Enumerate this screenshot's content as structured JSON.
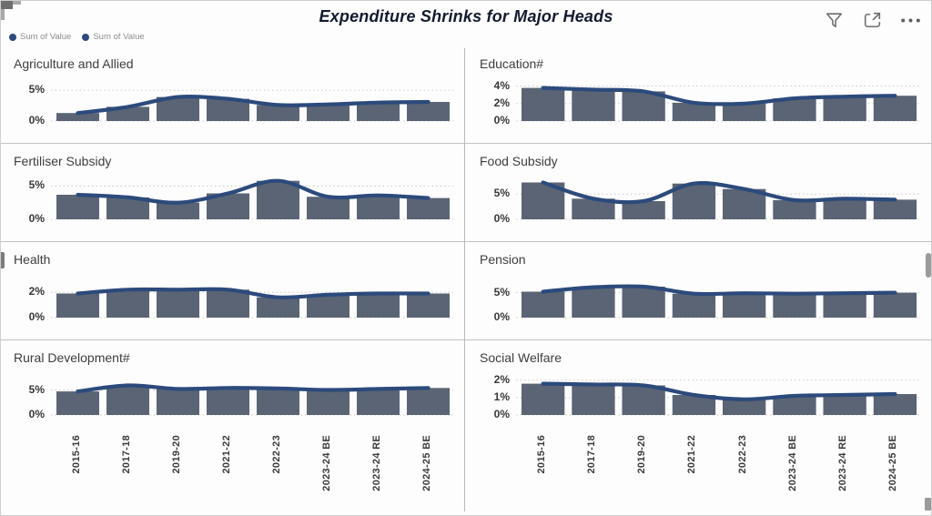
{
  "header": {
    "title": "Expenditure Shrinks for Major Heads",
    "icons": {
      "filter": "filter-icon",
      "focus": "focus-mode-icon",
      "more": "more-options-icon"
    }
  },
  "legend": {
    "items": [
      "Sum of Value",
      "Sum of Value"
    ]
  },
  "colors": {
    "bar": "#5a6474",
    "line": "#2c4a7c",
    "legend_dot": "#2c4a7c",
    "grid": "#c9c9c9",
    "title_text": "#121a2e"
  },
  "chart_data": {
    "type": "bar",
    "subtype": "small-multiples bar+line combo (two identical 'Sum of Value' series per panel)",
    "title": "Expenditure Shrinks for Major Heads",
    "categories": [
      "2015-16",
      "2017-18",
      "2019-20",
      "2021-22",
      "2022-23",
      "2023-24 BE",
      "2023-24 RE",
      "2024-25 BE"
    ],
    "series_names": [
      "Sum of Value",
      "Sum of Value"
    ],
    "grid": "dotted",
    "legend_position": "top-left",
    "panels": [
      {
        "title": "Agriculture and Allied",
        "tick_values": [
          0,
          5
        ],
        "tick_labels": [
          "0%",
          "5%"
        ],
        "ylim": [
          0,
          6.8
        ],
        "values": [
          1.3,
          2.3,
          3.9,
          3.6,
          2.6,
          2.7,
          3.0,
          3.1
        ]
      },
      {
        "title": "Education#",
        "tick_values": [
          0,
          2,
          4
        ],
        "tick_labels": [
          "0%",
          "2%",
          "4%"
        ],
        "ylim": [
          0,
          4.8
        ],
        "values": [
          3.8,
          3.6,
          3.4,
          2.1,
          2.0,
          2.6,
          2.8,
          2.9
        ]
      },
      {
        "title": "Fertiliser Subsidy",
        "tick_values": [
          0,
          5
        ],
        "tick_labels": [
          "0%",
          "5%"
        ],
        "ylim": [
          0,
          6.3
        ],
        "values": [
          3.7,
          3.3,
          2.5,
          3.9,
          5.8,
          3.4,
          3.6,
          3.2
        ]
      },
      {
        "title": "Food Subsidy",
        "tick_values": [
          0,
          5
        ],
        "tick_labels": [
          "0%",
          "5%"
        ],
        "ylim": [
          0,
          8.3
        ],
        "values": [
          7.3,
          4.1,
          3.6,
          7.1,
          6.0,
          3.8,
          4.1,
          3.9
        ]
      },
      {
        "title": "Health",
        "tick_values": [
          0,
          2
        ],
        "tick_labels": [
          "0%",
          "2%"
        ],
        "ylim": [
          0,
          3.3
        ],
        "values": [
          1.9,
          2.2,
          2.2,
          2.2,
          1.6,
          1.8,
          1.9,
          1.9
        ]
      },
      {
        "title": "Pension",
        "tick_values": [
          0,
          5
        ],
        "tick_labels": [
          "0%",
          "5%"
        ],
        "ylim": [
          0,
          8.4
        ],
        "values": [
          5.2,
          6.1,
          6.2,
          4.8,
          4.9,
          4.8,
          4.9,
          5.0
        ]
      },
      {
        "title": "Rural Development#",
        "tick_values": [
          0,
          5
        ],
        "tick_labels": [
          "0%",
          "5%"
        ],
        "ylim": [
          0,
          8.0
        ],
        "values": [
          4.7,
          5.9,
          5.2,
          5.4,
          5.3,
          5.0,
          5.2,
          5.4
        ]
      },
      {
        "title": "Social Welfare",
        "tick_values": [
          0,
          1,
          2
        ],
        "tick_labels": [
          "0%",
          "1%",
          "2%"
        ],
        "ylim": [
          0,
          2.3
        ],
        "values": [
          1.8,
          1.75,
          1.7,
          1.15,
          0.9,
          1.1,
          1.15,
          1.2
        ]
      }
    ]
  }
}
